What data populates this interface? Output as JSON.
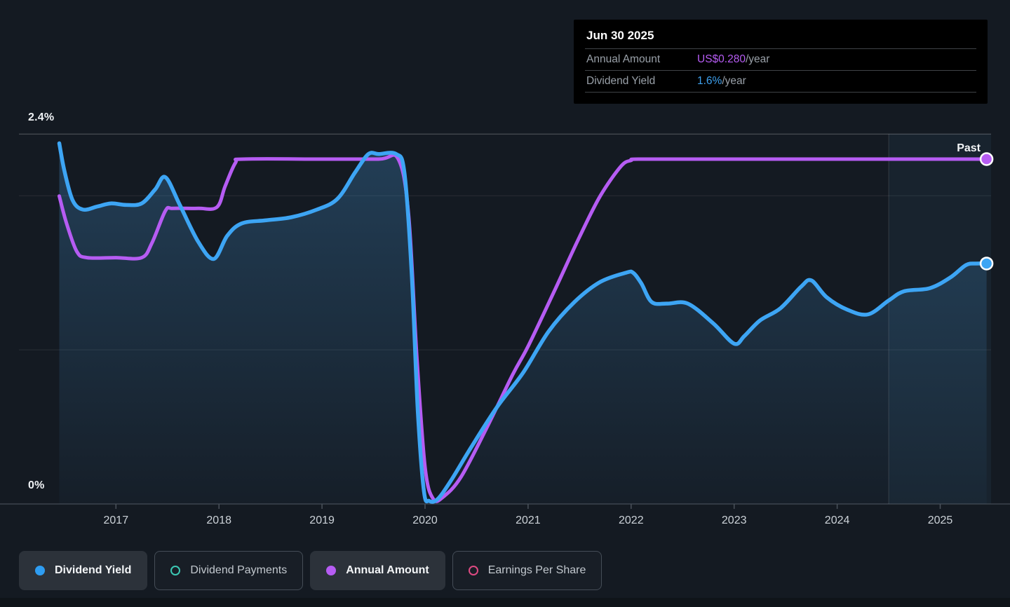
{
  "tooltip": {
    "date": "Jun 30 2025",
    "rows": [
      {
        "label": "Annual Amount",
        "value": "US$0.280",
        "suffix": "/year",
        "color": "#b65cf3"
      },
      {
        "label": "Dividend Yield",
        "value": "1.6%",
        "suffix": "/year",
        "color": "#3ea2f0"
      }
    ]
  },
  "past_label": "Past",
  "axis": {
    "y_top_label": "2.4%",
    "y_bottom_label": "0%"
  },
  "legend": [
    {
      "label": "Dividend Yield",
      "marker": "filled",
      "color": "#2e9df2",
      "active": true
    },
    {
      "label": "Dividend Payments",
      "marker": "ring",
      "color": "#3cc8b4",
      "active": false
    },
    {
      "label": "Annual Amount",
      "marker": "filled",
      "color": "#b65cf3",
      "active": true
    },
    {
      "label": "Earnings Per Share",
      "marker": "ring",
      "color": "#de4a82",
      "active": false
    }
  ],
  "colors": {
    "background": "#141a22",
    "axis_line": "#454c55",
    "gridline": "rgba(255,255,255,0.09)",
    "gridline_top": "rgba(255,255,255,0.28)",
    "tick": "#4a525b",
    "year_label": "#ccd2d8",
    "blue_line": "#3da5f4",
    "purple_line": "#b65cf3",
    "marker_ring": "#ffffff",
    "area_fill_top": "rgba(64,138,196,0.33)",
    "area_fill_bottom": "rgba(64,138,196,0.04)",
    "highlight_fill": "rgba(90,150,210,0.07)",
    "highlight_edge": "rgba(255,255,255,0.13)"
  },
  "chart_data": {
    "type": "line",
    "title": "Dividend history - yield and annual amount over time",
    "x_axis": {
      "ticks": [
        2017,
        2018,
        2019,
        2020,
        2021,
        2022,
        2023,
        2024,
        2025
      ],
      "min": 2016.25,
      "max": 2025.5
    },
    "y_axis": {
      "min": 0,
      "max": 2.4,
      "unit": "%",
      "labeled": [
        2.4,
        0
      ],
      "gridlines_pct": [
        2.4,
        2,
        1,
        0
      ]
    },
    "highlight_region": {
      "from": 2024.5,
      "to": 2025.5,
      "label": "Past"
    },
    "series": [
      {
        "name": "Dividend Yield",
        "unit": "%",
        "color": "#3da5f4",
        "style": "line-with-area",
        "end_marker": true,
        "points": [
          [
            2016.45,
            2.34
          ],
          [
            2016.5,
            2.16
          ],
          [
            2016.58,
            1.97
          ],
          [
            2016.68,
            1.91
          ],
          [
            2016.82,
            1.93
          ],
          [
            2016.95,
            1.95
          ],
          [
            2017.1,
            1.94
          ],
          [
            2017.25,
            1.95
          ],
          [
            2017.38,
            2.04
          ],
          [
            2017.48,
            2.12
          ],
          [
            2017.62,
            1.94
          ],
          [
            2017.8,
            1.7
          ],
          [
            2017.95,
            1.59
          ],
          [
            2018.08,
            1.74
          ],
          [
            2018.22,
            1.82
          ],
          [
            2018.45,
            1.84
          ],
          [
            2018.7,
            1.86
          ],
          [
            2018.95,
            1.91
          ],
          [
            2019.15,
            1.98
          ],
          [
            2019.32,
            2.15
          ],
          [
            2019.45,
            2.27
          ],
          [
            2019.55,
            2.27
          ],
          [
            2019.72,
            2.27
          ],
          [
            2019.8,
            2.15
          ],
          [
            2019.87,
            1.5
          ],
          [
            2019.93,
            0.6
          ],
          [
            2019.99,
            0.08
          ],
          [
            2020.04,
            0.02
          ],
          [
            2020.12,
            0.03
          ],
          [
            2020.25,
            0.15
          ],
          [
            2020.45,
            0.37
          ],
          [
            2020.7,
            0.63
          ],
          [
            2020.95,
            0.85
          ],
          [
            2021.2,
            1.12
          ],
          [
            2021.45,
            1.31
          ],
          [
            2021.7,
            1.44
          ],
          [
            2021.95,
            1.5
          ],
          [
            2022.02,
            1.5
          ],
          [
            2022.1,
            1.43
          ],
          [
            2022.2,
            1.31
          ],
          [
            2022.35,
            1.3
          ],
          [
            2022.55,
            1.3
          ],
          [
            2022.8,
            1.17
          ],
          [
            2023.0,
            1.04
          ],
          [
            2023.1,
            1.09
          ],
          [
            2023.25,
            1.19
          ],
          [
            2023.45,
            1.27
          ],
          [
            2023.65,
            1.41
          ],
          [
            2023.75,
            1.45
          ],
          [
            2023.9,
            1.34
          ],
          [
            2024.1,
            1.26
          ],
          [
            2024.3,
            1.23
          ],
          [
            2024.5,
            1.32
          ],
          [
            2024.65,
            1.38
          ],
          [
            2024.9,
            1.4
          ],
          [
            2025.1,
            1.47
          ],
          [
            2025.25,
            1.55
          ],
          [
            2025.35,
            1.56
          ],
          [
            2025.45,
            1.56
          ]
        ]
      },
      {
        "name": "Annual Amount",
        "unit": "US$/year",
        "color": "#b65cf3",
        "style": "line",
        "end_marker": true,
        "points": [
          [
            2016.45,
            0.25
          ],
          [
            2016.52,
            0.228
          ],
          [
            2016.62,
            0.205
          ],
          [
            2016.72,
            0.2
          ],
          [
            2017.0,
            0.2
          ],
          [
            2017.25,
            0.2
          ],
          [
            2017.35,
            0.212
          ],
          [
            2017.48,
            0.238
          ],
          [
            2017.55,
            0.24
          ],
          [
            2017.8,
            0.24
          ],
          [
            2017.98,
            0.241
          ],
          [
            2018.06,
            0.258
          ],
          [
            2018.16,
            0.277
          ],
          [
            2018.24,
            0.28
          ],
          [
            2019.0,
            0.28
          ],
          [
            2019.55,
            0.28
          ],
          [
            2019.74,
            0.28
          ],
          [
            2019.84,
            0.235
          ],
          [
            2019.92,
            0.12
          ],
          [
            2020.0,
            0.03
          ],
          [
            2020.08,
            0.004
          ],
          [
            2020.18,
            0.006
          ],
          [
            2020.35,
            0.022
          ],
          [
            2020.6,
            0.062
          ],
          [
            2020.85,
            0.105
          ],
          [
            2021.0,
            0.128
          ],
          [
            2021.25,
            0.172
          ],
          [
            2021.5,
            0.217
          ],
          [
            2021.7,
            0.25
          ],
          [
            2021.9,
            0.274
          ],
          [
            2022.0,
            0.279
          ],
          [
            2022.1,
            0.28
          ],
          [
            2023.0,
            0.28
          ],
          [
            2024.0,
            0.28
          ],
          [
            2025.0,
            0.28
          ],
          [
            2025.45,
            0.28
          ]
        ]
      }
    ],
    "hidden_series": [
      {
        "name": "Dividend Payments",
        "color": "#3cc8b4"
      },
      {
        "name": "Earnings Per Share",
        "color": "#de4a82"
      }
    ],
    "latest": {
      "date": "Jun 30 2025",
      "annual_amount": "US$0.280/year",
      "dividend_yield": "1.6%/year"
    }
  }
}
